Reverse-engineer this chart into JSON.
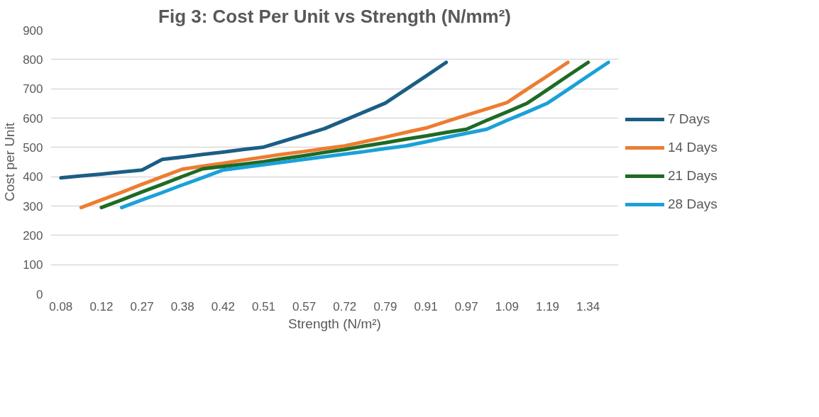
{
  "chart_data": {
    "type": "line",
    "title": "Fig 3: Cost Per Unit vs Strength (N/mm²)",
    "xlabel": "Strength (N/m²)",
    "ylabel": "Cost per Unit",
    "categories": [
      "0.08",
      null,
      "0.12",
      null,
      "0.27",
      null,
      "0.38",
      null,
      "0.42",
      null,
      "0.51",
      null,
      "0.57",
      null,
      "0.72",
      null,
      "0.79",
      null,
      "0.91",
      null,
      "0.97",
      null,
      "1.09",
      null,
      "1.19",
      null,
      "1.34",
      null
    ],
    "series": [
      {
        "name": "7 Days",
        "color": "#1b5e85",
        "values": [
          396,
          403,
          409,
          416,
          423,
          459,
          467,
          476,
          484,
          493,
          501,
          522,
          543,
          564,
          593,
          622,
          651,
          697,
          743,
          790,
          null,
          null,
          null,
          null,
          null,
          null,
          null,
          null
        ]
      },
      {
        "name": "14 Days",
        "color": "#ed7d31",
        "values": [
          null,
          295,
          321,
          347,
          374,
          400,
          426,
          436,
          446,
          457,
          467,
          477,
          486,
          496,
          505,
          520,
          535,
          551,
          566,
          588,
          610,
          631,
          653,
          699,
          744,
          790,
          null,
          null
        ]
      },
      {
        "name": "21 Days",
        "color": "#1e6b24",
        "values": [
          null,
          null,
          295,
          321,
          348,
          374,
          401,
          427,
          435,
          443,
          451,
          462,
          472,
          483,
          493,
          505,
          516,
          528,
          539,
          551,
          562,
          592,
          621,
          651,
          697,
          744,
          790,
          null
        ]
      },
      {
        "name": "28 Days",
        "color": "#1ba1d8",
        "values": [
          null,
          null,
          null,
          295,
          321,
          346,
          372,
          397,
          423,
          432,
          441,
          450,
          459,
          468,
          477,
          486,
          496,
          505,
          519,
          534,
          548,
          562,
          592,
          621,
          651,
          697,
          744,
          790
        ]
      }
    ],
    "ylim": [
      0,
      900
    ],
    "yticks": [
      0,
      100,
      200,
      300,
      400,
      500,
      600,
      700,
      800,
      900
    ],
    "grid": "y",
    "legend": "right",
    "marker": "none",
    "line_style": "solid"
  }
}
